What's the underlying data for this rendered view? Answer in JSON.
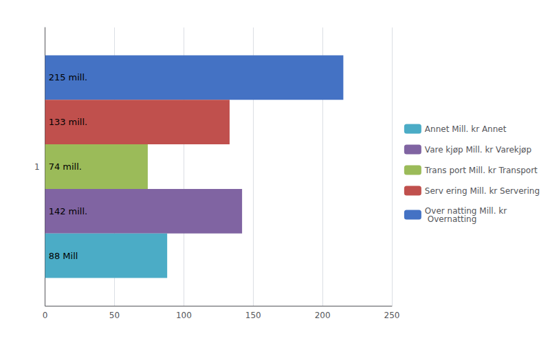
{
  "chart_data": {
    "type": "bar",
    "orientation": "horizontal",
    "categories": [
      "1"
    ],
    "series": [
      {
        "name": "Over natting Mill. kr\n Overnatting",
        "color": "#4472c4",
        "values": [
          215
        ],
        "value_labels": [
          "215 mill."
        ]
      },
      {
        "name": "Serv ering Mill. kr Servering",
        "color": "#c0504d",
        "values": [
          133
        ],
        "value_labels": [
          "133 mill."
        ]
      },
      {
        "name": "Trans port Mill. kr Transport",
        "color": "#9bbb59",
        "values": [
          74
        ],
        "value_labels": [
          "74 mill."
        ]
      },
      {
        "name": "Vare kjøp Mill. kr Varekjøp",
        "color": "#8064a2",
        "values": [
          142
        ],
        "value_labels": [
          "142 mill."
        ]
      },
      {
        "name": "Annet Mill. kr Annet",
        "color": "#4bacc6",
        "values": [
          88
        ],
        "value_labels": [
          "88 Mill"
        ]
      }
    ],
    "xlim": [
      0,
      250
    ],
    "xticks": [
      0,
      50,
      100,
      150,
      200,
      250
    ],
    "grid": true,
    "legend": "right",
    "data_labels": true
  }
}
